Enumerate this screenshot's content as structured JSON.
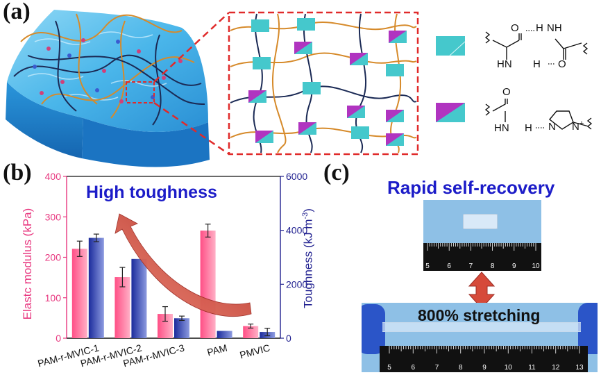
{
  "panels": {
    "a": "(a)",
    "b": "(b)",
    "c": "(c)"
  },
  "colors": {
    "cyan": "#45c8cc",
    "magenta": "#b034c0",
    "rope_orange": "#d68a2a",
    "rope_navy": "#1b2a55",
    "pink_axis": "#e8377f",
    "navy_axis": "#1f1f8f",
    "arrow_red": "#c0392b",
    "title_blue": "#1c1cc8"
  },
  "legend": {
    "hbond_amide": {
      "o_top": "O",
      "h_top": "H",
      "nh_top": "NH",
      "hn_bottom": "HN",
      "h_bottom": "H",
      "o_bottom": "O"
    },
    "hbond_imidazole": {
      "o": "O",
      "hn": "HN",
      "h": "H",
      "n1": "N",
      "n2": "N",
      "plus": "+"
    }
  },
  "chart_data": {
    "type": "bar",
    "title": "High toughness",
    "categories": [
      "PAM-r-MVIC-1",
      "PAM-r-MVIC-2",
      "PAM-r-MVIC-3",
      "PAM",
      "PMVIC"
    ],
    "series": [
      {
        "name": "Elastic modulus",
        "axis": "left",
        "color": "#ff6f99",
        "values": [
          221,
          151,
          60,
          266,
          30
        ],
        "errors": [
          19,
          24,
          18,
          16,
          5
        ]
      },
      {
        "name": "Toughness",
        "axis": "right",
        "color": "#2a3aa8",
        "values": [
          3720,
          2940,
          740,
          270,
          230
        ],
        "errors": [
          140,
          0,
          80,
          0,
          140
        ]
      }
    ],
    "ylabel_left": "Elastc modulus (kPa)",
    "ylabel_right_main": "Toughness (kJ m",
    "ylabel_right_sup": "-3",
    "ylabel_right_end": ")",
    "ylim_left": [
      0,
      400
    ],
    "ylim_right": [
      0,
      6000
    ],
    "yticks_left": [
      "0",
      "100",
      "200",
      "300",
      "400"
    ],
    "yticks_right": [
      "0",
      "2000",
      "4000",
      "6000"
    ]
  },
  "panel_c": {
    "title": "Rapid self-recovery",
    "stretch_label": "800% stretching",
    "ruler_top": [
      "5",
      "6",
      "7",
      "8",
      "9",
      "10"
    ],
    "ruler_bottom": [
      "5",
      "6",
      "7",
      "8",
      "9",
      "10",
      "11",
      "12",
      "13"
    ]
  }
}
